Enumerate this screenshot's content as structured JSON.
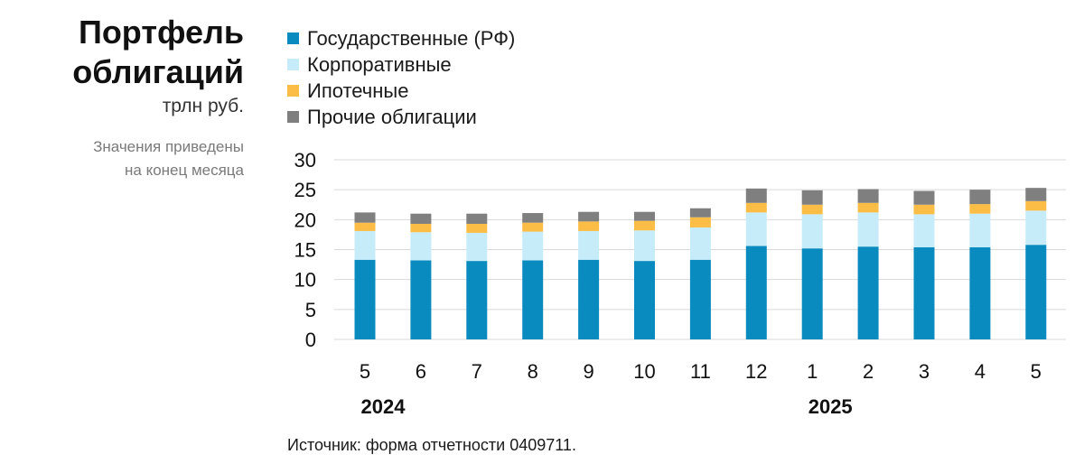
{
  "header": {
    "title_line1": "Портфель",
    "title_line2": "облигаций",
    "units": "трлн руб.",
    "note_line1": "Значения приведены",
    "note_line2": "на конец месяца"
  },
  "source": "Источник: форма отчетности 0409711.",
  "colors": {
    "gov": "#0a8bbf",
    "corp": "#c6ecfa",
    "mortgage": "#fbbd45",
    "other": "#7f7f7f",
    "grid": "#d9d9d9"
  },
  "chart_data": {
    "type": "bar",
    "stacked": true,
    "title": "Портфель облигаций",
    "ylabel": "трлн руб.",
    "ylim": [
      0,
      30
    ],
    "yticks": [
      0,
      5,
      10,
      15,
      20,
      25,
      30
    ],
    "grid": true,
    "legend_position": "top",
    "categories": [
      "5",
      "6",
      "7",
      "8",
      "9",
      "10",
      "11",
      "12",
      "1",
      "2",
      "3",
      "4",
      "5"
    ],
    "year_labels": [
      {
        "label": "2024",
        "category_index": 0
      },
      {
        "label": "2025",
        "category_index": 8
      }
    ],
    "series": [
      {
        "name": "Государственные (РФ)",
        "color_key": "gov",
        "values": [
          13.3,
          13.2,
          13.1,
          13.2,
          13.3,
          13.1,
          13.3,
          15.6,
          15.2,
          15.5,
          15.4,
          15.4,
          15.8
        ]
      },
      {
        "name": "Корпоративные",
        "color_key": "corp",
        "values": [
          4.8,
          4.7,
          4.7,
          4.8,
          4.8,
          5.1,
          5.4,
          5.6,
          5.7,
          5.7,
          5.5,
          5.6,
          5.7
        ]
      },
      {
        "name": "Ипотечные",
        "color_key": "mortgage",
        "values": [
          1.4,
          1.4,
          1.5,
          1.5,
          1.6,
          1.6,
          1.7,
          1.6,
          1.6,
          1.6,
          1.6,
          1.6,
          1.6
        ]
      },
      {
        "name": "Прочие облигации",
        "color_key": "other",
        "values": [
          1.7,
          1.7,
          1.7,
          1.6,
          1.6,
          1.5,
          1.5,
          2.4,
          2.4,
          2.3,
          2.3,
          2.4,
          2.2
        ]
      }
    ]
  }
}
